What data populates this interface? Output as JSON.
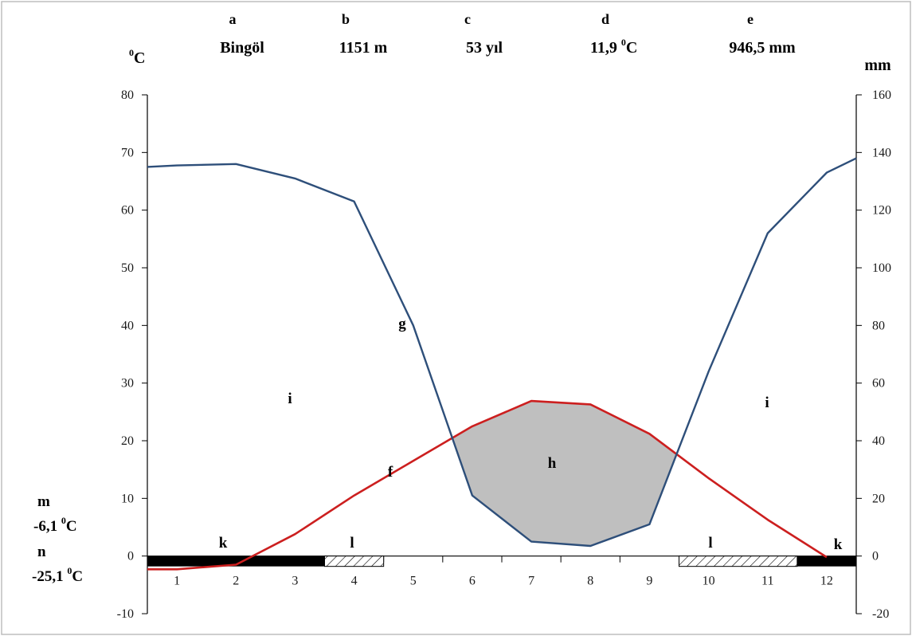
{
  "chart_data": {
    "type": "line",
    "header": [
      {
        "letter": "a",
        "value": "Bingöl"
      },
      {
        "letter": "b",
        "value": "1151 m"
      },
      {
        "letter": "c",
        "value": "53 yıl"
      },
      {
        "letter": "d",
        "value_main": "11,9 ",
        "value_sup": "0",
        "value_tail": "C"
      },
      {
        "letter": "e",
        "value": "946,5 mm"
      }
    ],
    "left_unit": {
      "sup": "0",
      "main": "C"
    },
    "right_unit": "mm",
    "left_axis": {
      "ylim": [
        -10,
        80
      ],
      "ticks": [
        -10,
        0,
        10,
        20,
        30,
        40,
        50,
        60,
        70,
        80
      ]
    },
    "right_axis": {
      "ylim": [
        -20,
        160
      ],
      "ticks": [
        -20,
        0,
        20,
        40,
        60,
        80,
        100,
        120,
        140,
        160
      ]
    },
    "months": [
      "1",
      "2",
      "3",
      "4",
      "5",
      "6",
      "7",
      "8",
      "9",
      "10",
      "11",
      "12"
    ],
    "series": [
      {
        "key": "temperature",
        "axis": "left",
        "color": "#cc1f1f",
        "x": [
          0.5,
          1,
          2,
          3,
          4,
          5,
          6,
          7,
          8,
          9,
          10,
          11,
          12
        ],
        "values": [
          -2.3,
          -2.3,
          -1.5,
          3.8,
          10.5,
          16.5,
          22.5,
          26.9,
          26.3,
          21.2,
          13.5,
          6.3,
          -0.2
        ]
      },
      {
        "key": "precipitation",
        "axis": "right",
        "color": "#2e4f7a",
        "x": [
          0.5,
          1,
          2,
          3,
          4,
          5,
          6,
          7,
          8,
          9,
          10,
          11,
          12,
          12.5
        ],
        "values": [
          135,
          135.5,
          136,
          131,
          123,
          80,
          21,
          5,
          3.5,
          11,
          64,
          112,
          133,
          138
        ]
      }
    ],
    "labels": {
      "f": "f",
      "g": "g",
      "h": "h",
      "i_left": "i",
      "i_right": "i",
      "k_left": "k",
      "k_right": "k",
      "l_left": "l",
      "l_right": "l"
    },
    "side": {
      "m_letter": "m",
      "m_value": "-6,1 ",
      "m_sup": "0",
      "m_unit": "C",
      "n_letter": "n",
      "n_value": "-25,1 ",
      "n_sup": "0",
      "n_unit": "C"
    },
    "frost_bars": [
      {
        "pattern": "solid",
        "from": 0.5,
        "to": 3.5
      },
      {
        "pattern": "hatched",
        "from": 3.5,
        "to": 4.5
      },
      {
        "pattern": "hatched",
        "from": 9.5,
        "to": 11.5
      },
      {
        "pattern": "solid",
        "from": 11.5,
        "to": 12.5
      }
    ],
    "colors": {
      "dry_fill": "#bfbfbf",
      "temperature": "#cc1f1f",
      "precipitation": "#2e4f7a",
      "frost_solid": "#000000"
    }
  }
}
